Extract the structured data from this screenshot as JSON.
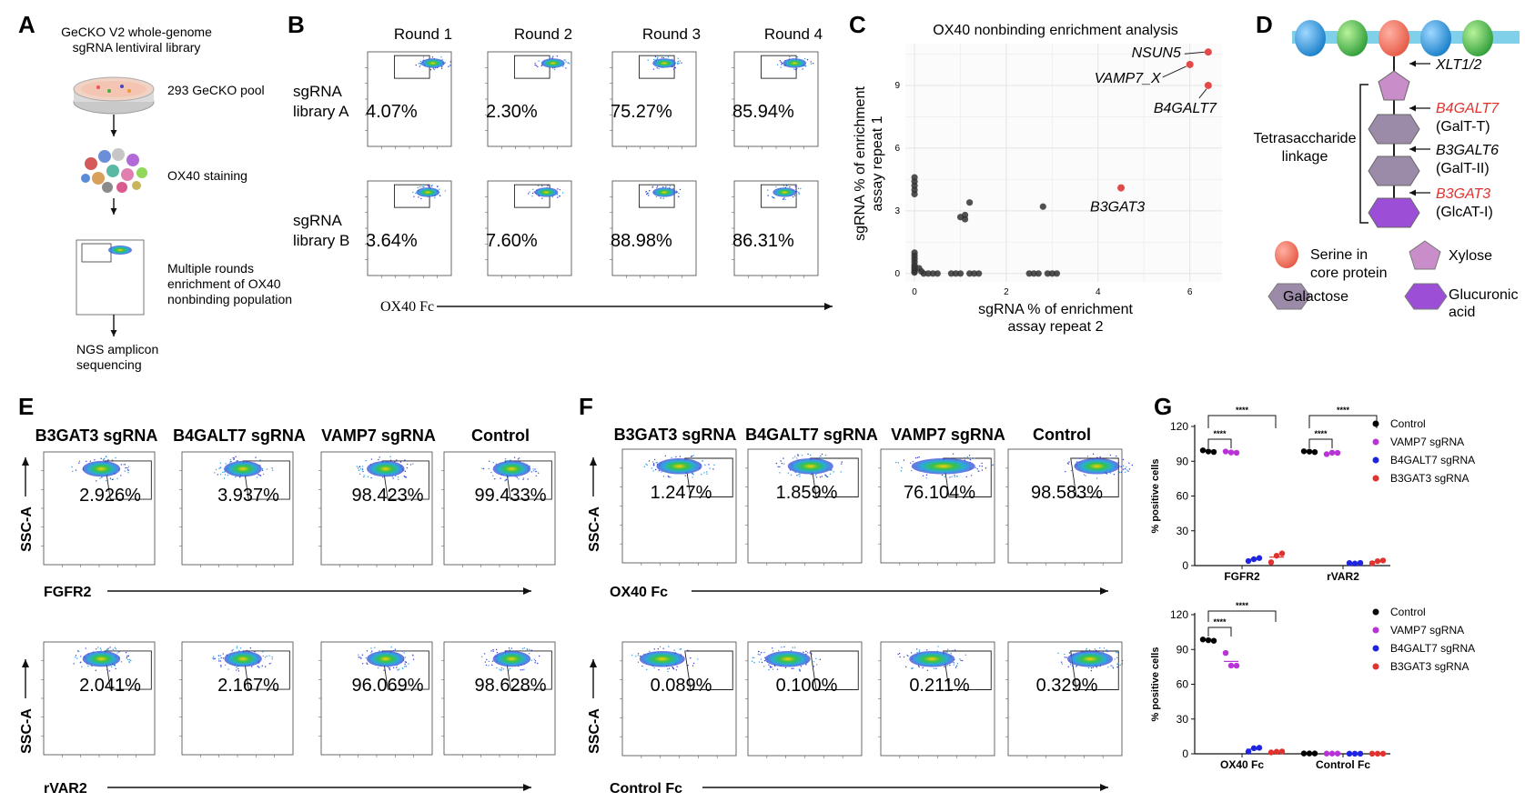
{
  "panel_letters": [
    "A",
    "B",
    "C",
    "D",
    "E",
    "F",
    "G"
  ],
  "panel_a": {
    "library": "GeCKO V2 whole-genome sgRNA lentiviral library",
    "library_line1": "GeCKO V2 whole-genome",
    "library_line2": "sgRNA lentiviral library",
    "pool": "293 GeCKO pool",
    "staining": "OX40 staining",
    "enrich_line1": "Multiple rounds",
    "enrich_line2": "enrichment of OX40",
    "enrich_line3": "nonbinding population",
    "ngs_line1": "NGS amplicon",
    "ngs_line2": "sequencing"
  },
  "panel_b": {
    "rounds": [
      "Round 1",
      "Round 2",
      "Round 3",
      "Round 4"
    ],
    "rows": [
      {
        "label_line1": "sgRNA",
        "label_line2": "library A",
        "values": [
          "4.07%",
          "2.30%",
          "75.27%",
          "85.94%"
        ]
      },
      {
        "label_line1": "sgRNA",
        "label_line2": "library B",
        "values": [
          "3.64%",
          "7.60%",
          "88.98%",
          "86.31%"
        ]
      }
    ],
    "x_axis": "OX40 Fc"
  },
  "panel_c": {
    "chart_data": {
      "type": "scatter",
      "title": "OX40 nonbinding enrichment analysis",
      "xlabel_line1": "sgRNA % of enrichment",
      "xlabel_line2": "assay repeat 2",
      "ylabel_line1": "sgRNA % of enrichment",
      "ylabel_line2": "assay repeat 1",
      "xlim": [
        -0.2,
        6.7
      ],
      "ylim": [
        -0.4,
        11.0
      ],
      "x_ticks": [
        "0",
        "2",
        "4",
        "6"
      ],
      "y_ticks": [
        "0",
        "3",
        "6",
        "9"
      ],
      "highlighted": [
        {
          "label": "NSUN5",
          "x": 6.4,
          "y": 10.6
        },
        {
          "label": "VAMP7_X",
          "x": 6.0,
          "y": 10.0
        },
        {
          "label": "B4GALT7",
          "x": 6.4,
          "y": 9.0
        },
        {
          "label": "B3GAT3",
          "x": 4.5,
          "y": 4.1
        }
      ],
      "points": [
        [
          0.0,
          4.6
        ],
        [
          0.0,
          4.4
        ],
        [
          0.0,
          4.2
        ],
        [
          0.0,
          4.0
        ],
        [
          0.0,
          3.8
        ],
        [
          1.2,
          3.4
        ],
        [
          1.1,
          2.8
        ],
        [
          1.0,
          2.7
        ],
        [
          1.1,
          2.6
        ],
        [
          2.8,
          3.2
        ],
        [
          0.0,
          1.0
        ],
        [
          0.0,
          0.85
        ],
        [
          0.0,
          0.7
        ],
        [
          0.0,
          0.55
        ],
        [
          0.0,
          0.4
        ],
        [
          0.0,
          0.3
        ],
        [
          0.0,
          0.2
        ],
        [
          0.0,
          0.1
        ],
        [
          0.0,
          0.05
        ],
        [
          0.1,
          0.25
        ],
        [
          0.15,
          0.1
        ],
        [
          0.2,
          0.0
        ],
        [
          0.3,
          0.0
        ],
        [
          0.4,
          0.0
        ],
        [
          0.5,
          0.0
        ],
        [
          0.8,
          0.0
        ],
        [
          0.9,
          0.0
        ],
        [
          1.0,
          0.0
        ],
        [
          1.2,
          0.0
        ],
        [
          1.3,
          0.0
        ],
        [
          1.4,
          0.0
        ],
        [
          2.5,
          0.0
        ],
        [
          2.6,
          0.0
        ],
        [
          2.7,
          0.0
        ],
        [
          2.9,
          0.0
        ],
        [
          3.0,
          0.0
        ],
        [
          3.1,
          0.0
        ]
      ]
    }
  },
  "panel_d": {
    "xlt": "XLT1/2",
    "enzymes": [
      {
        "gene": "B4GALT7",
        "protein": "(GalT-T)",
        "red": true
      },
      {
        "gene": "B3GALT6",
        "protein": "(GalT-II)",
        "red": false
      },
      {
        "gene": "B3GAT3",
        "protein": "(GlcAT-I)",
        "red": true
      }
    ],
    "linkage_line1": "Tetrasaccharide",
    "linkage_line2": "linkage",
    "legend": {
      "serine_line1": "Serine in",
      "serine_line2": "core protein",
      "xylose": "Xylose",
      "galactose": "Galactose",
      "glucuronic_line1": "Glucuronic",
      "glucuronic_line2": "acid"
    },
    "colors": {
      "serine": "#ee6a55",
      "xylose": "#c98ec9",
      "galactose": "#9b8aa8",
      "glucuronic": "#9c4fd6",
      "membrane": "#7fd0e8"
    }
  },
  "panel_e": {
    "columns": [
      "B3GAT3 sgRNA",
      "B4GALT7 sgRNA",
      "VAMP7 sgRNA",
      "Control"
    ],
    "rows": [
      {
        "x_axis": "FGFR2",
        "y_axis": "SSC-A",
        "values": [
          "2.926%",
          "3.937%",
          "98.423%",
          "99.433%"
        ]
      },
      {
        "x_axis": "rVAR2",
        "y_axis": "SSC-A",
        "values": [
          "2.041%",
          "2.167%",
          "96.069%",
          "98.628%"
        ]
      }
    ]
  },
  "panel_f": {
    "columns": [
      "B3GAT3 sgRNA",
      "B4GALT7 sgRNA",
      "VAMP7 sgRNA",
      "Control"
    ],
    "rows": [
      {
        "x_axis": "OX40 Fc",
        "y_axis": "SSC-A",
        "values": [
          "1.247%",
          "1.859%",
          "76.104%",
          "98.583%"
        ]
      },
      {
        "x_axis": "Control Fc",
        "y_axis": "SSC-A",
        "values": [
          "0.089%",
          "0.100%",
          "0.211%",
          "0.329%"
        ]
      }
    ]
  },
  "panel_g": {
    "chart_data": [
      {
        "type": "scatter",
        "ylabel": "% positive cells",
        "ylim": [
          0,
          120
        ],
        "y_ticks": [
          "0",
          "30",
          "60",
          "90",
          "120"
        ],
        "categories": [
          "FGFR2",
          "rVAR2"
        ],
        "legend": [
          "Control",
          "VAMP7 sgRNA",
          "B4GALT7 sgRNA",
          "B3GAT3 sgRNA"
        ],
        "colors": [
          "#000000",
          "#b833d6",
          "#1f24e0",
          "#e0322e"
        ],
        "series": [
          {
            "name": "Control",
            "values": [
              [
                99.4,
                98.4,
                98.0
              ],
              [
                98.6,
                98.3,
                97.9
              ]
            ]
          },
          {
            "name": "VAMP7 sgRNA",
            "values": [
              [
                98.4,
                97.6,
                97.3
              ],
              [
                96.1,
                97.4,
                97.2
              ]
            ]
          },
          {
            "name": "B4GALT7 sgRNA",
            "values": [
              [
                3.9,
                5.5,
                6.5
              ],
              [
                2.2,
                1.8,
                2.3
              ]
            ]
          },
          {
            "name": "B3GAT3 sgRNA",
            "values": [
              [
                2.9,
                8.5,
                10.5
              ],
              [
                2.0,
                3.8,
                4.4
              ]
            ]
          }
        ],
        "significance": [
          "****",
          "****",
          "****",
          "****"
        ]
      },
      {
        "type": "scatter",
        "ylabel": "% positive cells",
        "ylim": [
          0,
          120
        ],
        "y_ticks": [
          "0",
          "30",
          "60",
          "90",
          "120"
        ],
        "categories": [
          "OX40 Fc",
          "Control Fc"
        ],
        "legend": [
          "Control",
          "VAMP7 sgRNA",
          "B4GALT7 sgRNA",
          "B3GAT3 sgRNA"
        ],
        "colors": [
          "#000000",
          "#b833d6",
          "#1f24e0",
          "#e0322e"
        ],
        "series": [
          {
            "name": "Control",
            "values": [
              [
                98.6,
                98.0,
                97.5
              ],
              [
                0.3,
                0.3,
                0.3
              ]
            ]
          },
          {
            "name": "VAMP7 sgRNA",
            "values": [
              [
                87.0,
                76.1,
                76.0
              ],
              [
                0.2,
                0.2,
                0.2
              ]
            ]
          },
          {
            "name": "B4GALT7 sgRNA",
            "values": [
              [
                1.9,
                4.8,
                5.2
              ],
              [
                0.1,
                0.1,
                0.1
              ]
            ]
          },
          {
            "name": "B3GAT3 sgRNA",
            "values": [
              [
                1.2,
                1.8,
                2.0
              ],
              [
                0.1,
                0.1,
                0.1
              ]
            ]
          }
        ],
        "significance": [
          "****",
          "****"
        ]
      }
    ]
  }
}
